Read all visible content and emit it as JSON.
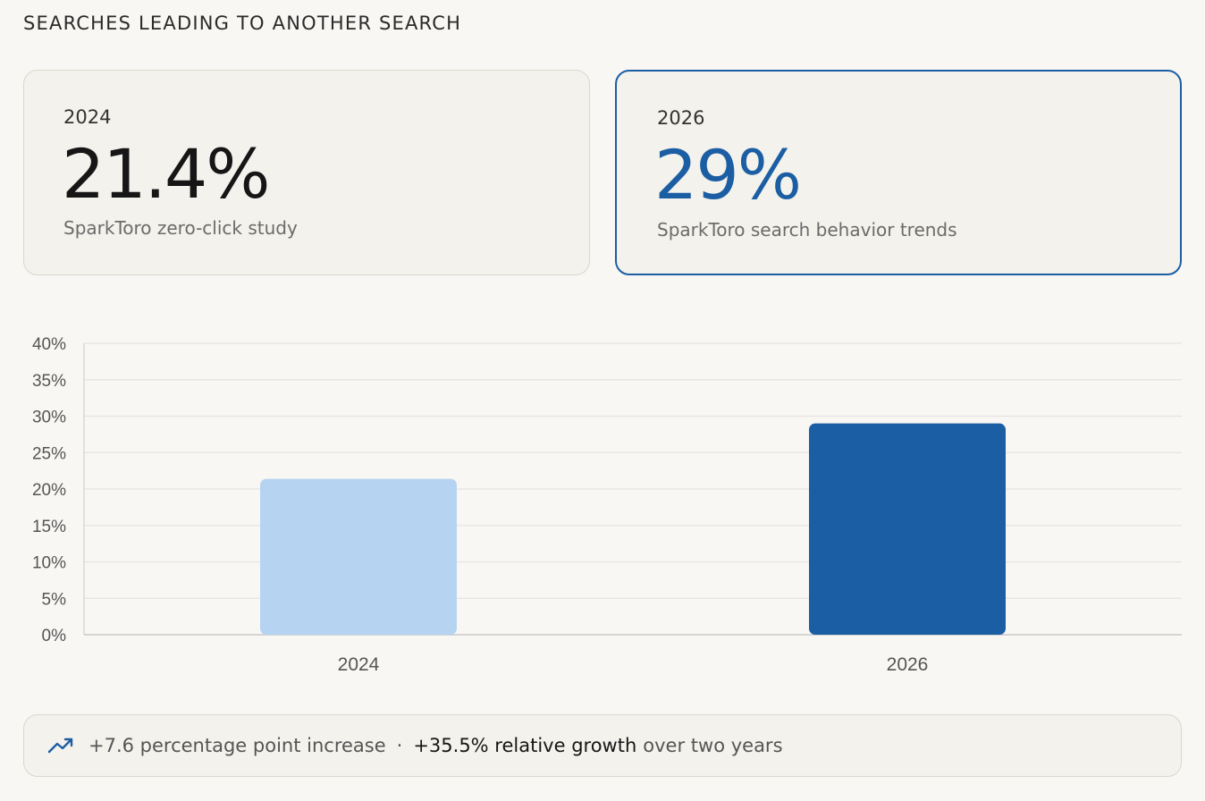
{
  "section_title": "SEARCHES LEADING TO ANOTHER SEARCH",
  "cards": [
    {
      "year": "2024",
      "value": "21.4%",
      "source": "SparkToro zero-click study"
    },
    {
      "year": "2026",
      "value": "29%",
      "source": "SparkToro search behavior trends"
    }
  ],
  "colors": {
    "accent": "#1c5ea3",
    "bar_light": "#b6d4f2",
    "bar_dark": "#1c5ea3"
  },
  "chart_data": {
    "type": "bar",
    "categories": [
      "2024",
      "2026"
    ],
    "values": [
      21.4,
      29
    ],
    "ylim": [
      0,
      40
    ],
    "yticks": [
      "0%",
      "5%",
      "10%",
      "15%",
      "20%",
      "25%",
      "30%",
      "35%",
      "40%"
    ],
    "ytick_values": [
      0,
      5,
      10,
      15,
      20,
      25,
      30,
      35,
      40
    ],
    "grid": true,
    "bar_colors": [
      "#b6d4f2",
      "#1c5ea3"
    ]
  },
  "footer": {
    "icon": "trending-up-icon",
    "increase": "+7.6 percentage point increase",
    "separator": "·",
    "growth": "+35.5% relative growth",
    "suffix": "over two years"
  }
}
